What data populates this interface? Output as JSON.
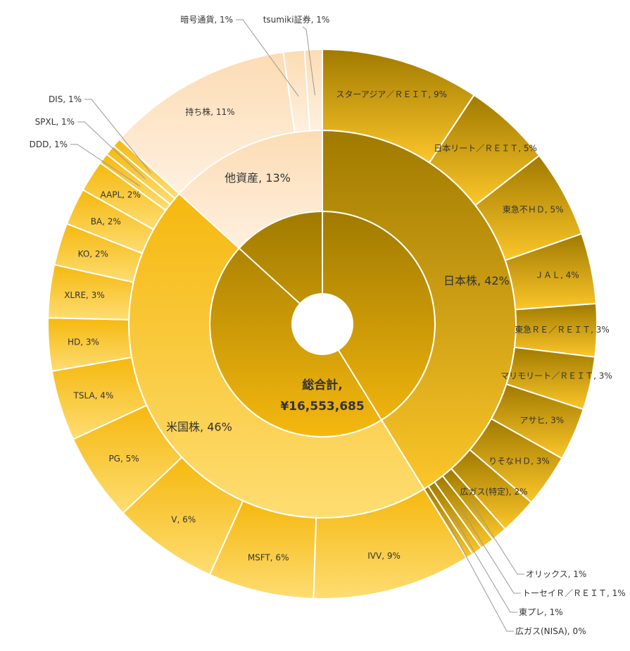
{
  "chart_data": {
    "type": "sunburst",
    "center": {
      "title": "総合計,",
      "total": "¥16,553,685"
    },
    "groups": [
      {
        "name": "日本株",
        "label": "日本株, 42%",
        "pct": 42,
        "color": "#c89a10",
        "children": [
          {
            "name": "スターアジア／ＲＥＩＴ",
            "label": "スターアジア／ＲＥＩＴ, 9%",
            "pct": 9
          },
          {
            "name": "日本リート／ＲＥＩＴ",
            "label": "日本リート／ＲＥＩＴ, 5%",
            "pct": 5
          },
          {
            "name": "東急不ＨＤ",
            "label": "東急不ＨＤ, 5%",
            "pct": 5
          },
          {
            "name": "ＪＡＬ",
            "label": "ＪＡＬ, 4%",
            "pct": 4
          },
          {
            "name": "東急ＲＥ／ＲＥＩＴ",
            "label": "東急ＲＥ／ＲＥＩＴ, 3%",
            "pct": 3
          },
          {
            "name": "マリモリート／ＲＥＩＴ",
            "label": "マリモリート／ＲＥＩＴ, 3%",
            "pct": 3
          },
          {
            "name": "アサヒ",
            "label": "アサヒ, 3%",
            "pct": 3
          },
          {
            "name": "りそなＨＤ",
            "label": "りそなＨＤ, 3%",
            "pct": 3
          },
          {
            "name": "広ガス(特定)",
            "label": "広ガス(特定), 2%",
            "pct": 2.1
          },
          {
            "name": "オリックス",
            "label": "オリックス, 1%",
            "pct": 0.9,
            "outside": true
          },
          {
            "name": "トーセイＲ／ＲＥＩＴ",
            "label": "トーセイＲ／ＲＥＩＴ, 1%",
            "pct": 0.8,
            "outside": true
          },
          {
            "name": "東プレ",
            "label": "東プレ, 1%",
            "pct": 0.6,
            "outside": true
          },
          {
            "name": "広ガス(NISA)",
            "label": "広ガス(NISA), 0%",
            "pct": 0.4,
            "outside": true
          }
        ]
      },
      {
        "name": "米国株",
        "label": "米国株, 46%",
        "pct": 46,
        "color": "#f6bf20",
        "children": [
          {
            "name": "IVV",
            "label": "IVV, 9%",
            "pct": 9
          },
          {
            "name": "MSFT",
            "label": "MSFT, 6%",
            "pct": 6
          },
          {
            "name": "V",
            "label": "V, 6%",
            "pct": 6
          },
          {
            "name": "PG",
            "label": "PG, 5%",
            "pct": 5
          },
          {
            "name": "TSLA",
            "label": "TSLA, 4%",
            "pct": 4
          },
          {
            "name": "HD",
            "label": "HD, 3%",
            "pct": 3
          },
          {
            "name": "XLRE",
            "label": "XLRE, 3%",
            "pct": 3
          },
          {
            "name": "KO",
            "label": "KO, 2%",
            "pct": 2.4
          },
          {
            "name": "BA",
            "label": "BA, 2%",
            "pct": 2.1
          },
          {
            "name": "AAPL",
            "label": "AAPL, 2%",
            "pct": 1.8
          },
          {
            "name": "DDD",
            "label": "DDD, 1%",
            "pct": 0.6,
            "outside": true
          },
          {
            "name": "SPXL",
            "label": "SPXL, 1%",
            "pct": 0.6,
            "outside": true
          },
          {
            "name": "DIS",
            "label": "DIS, 1%",
            "pct": 0.5,
            "outside": true
          }
        ]
      },
      {
        "name": "他資産",
        "label": "他資産, 13%",
        "pct": 12.8,
        "color": "#fde9cf",
        "children": [
          {
            "name": "持ち株",
            "label": "持ち株, 11%",
            "pct": 10.6
          },
          {
            "name": "暗号通貨",
            "label": "暗号通貨, 1%",
            "pct": 1.2,
            "outside": true
          },
          {
            "name": "tsumiki証券",
            "label": "tsumiki証券, 1%",
            "pct": 1.0,
            "outside": true
          }
        ]
      }
    ],
    "colors": {
      "jp_dark": "#a07a00",
      "jp_light": "#fcc62a",
      "us_dark": "#f5b80f",
      "us_light": "#fedd72",
      "other_dark": "#fcdcb4",
      "other_light": "#fff0e0"
    }
  }
}
